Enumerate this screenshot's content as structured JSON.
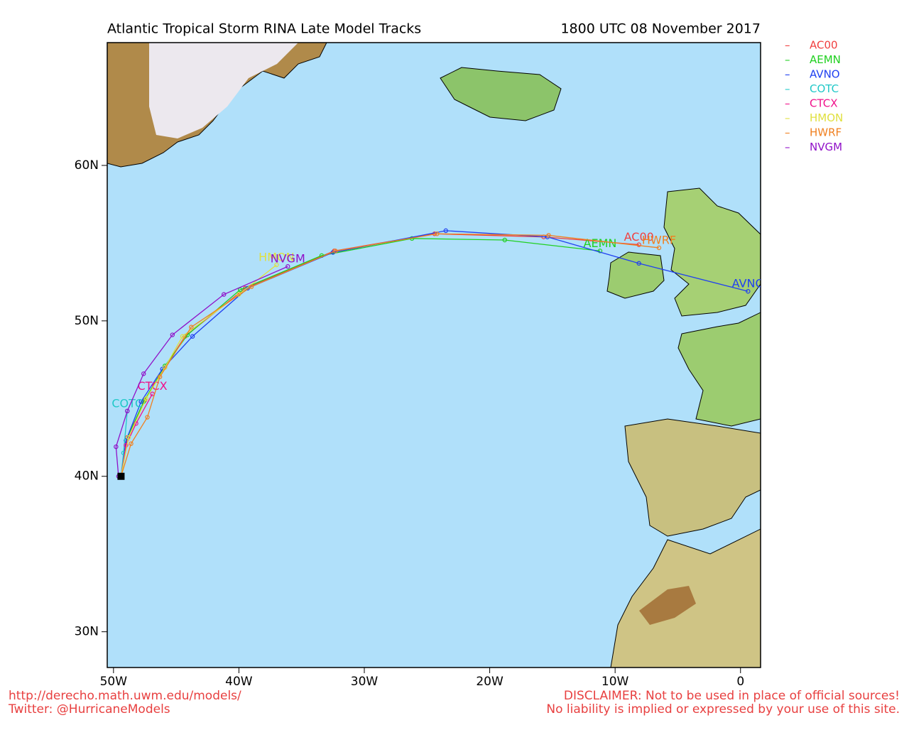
{
  "chart_data": {
    "type": "line",
    "title": "Atlantic Tropical Storm RINA Late Model Tracks",
    "subtitle": "1800 UTC 08 November 2017",
    "xlim": [
      -50.5,
      1.6
    ],
    "ylim": [
      27.7,
      67.9
    ],
    "xticks": [
      {
        "value": -50,
        "label": "50W"
      },
      {
        "value": -40,
        "label": "40W"
      },
      {
        "value": -30,
        "label": "30W"
      },
      {
        "value": -20,
        "label": "20W"
      },
      {
        "value": -10,
        "label": "10W"
      },
      0
    ],
    "yticks": [
      {
        "value": 30,
        "label": "30N"
      },
      {
        "value": 40,
        "label": "40N"
      },
      {
        "value": 50,
        "label": "50N"
      },
      {
        "value": 60,
        "label": "60N"
      }
    ],
    "legend": "outside-right",
    "series": [
      {
        "name": "AC00",
        "color": "#f04040",
        "x": [
          -49.4,
          -48.9,
          -47.5,
          -45.9,
          -44.3,
          -39.5,
          -32.4,
          -24.4,
          -15.7,
          -8.1
        ],
        "values": [
          40.0,
          42.5,
          44.9,
          47.0,
          49.0,
          52.1,
          54.5,
          55.6,
          55.4,
          54.9
        ]
      },
      {
        "name": "AEMN",
        "color": "#20d020",
        "x": [
          -49.4,
          -49.0,
          -47.6,
          -45.9,
          -44.1,
          -39.9,
          -33.4,
          -26.2,
          -18.8,
          -11.2
        ],
        "values": [
          40.0,
          42.3,
          44.8,
          47.1,
          49.1,
          52.0,
          54.2,
          55.3,
          55.2,
          54.5
        ]
      },
      {
        "name": "AVNO",
        "color": "#2040f0",
        "x": [
          -49.4,
          -49.0,
          -47.8,
          -46.1,
          -43.7,
          -39.3,
          -32.5,
          -23.5,
          -15.4,
          -8.1,
          0.6
        ],
        "values": [
          40.0,
          42.3,
          44.8,
          46.9,
          49.0,
          52.1,
          54.4,
          55.8,
          55.4,
          53.7,
          51.9
        ]
      },
      {
        "name": "COTC",
        "color": "#20c8c8",
        "x": [
          -49.4,
          -49.2,
          -48.9
        ],
        "values": [
          40.0,
          41.5,
          44.2
        ]
      },
      {
        "name": "CTCX",
        "color": "#f0108a",
        "x": [
          -49.4,
          -49.0,
          -48.2,
          -46.9
        ],
        "values": [
          40.0,
          42.0,
          43.4,
          45.3
        ]
      },
      {
        "name": "HMON",
        "color": "#e0e040",
        "x": [
          -49.4,
          -48.8,
          -47.4,
          -45.9,
          -44.5,
          -40.0,
          -37.0
        ],
        "values": [
          40.0,
          42.5,
          45.0,
          47.0,
          49.0,
          51.7,
          53.6
        ]
      },
      {
        "name": "HWRF",
        "color": "#f08020",
        "x": [
          -49.4,
          -48.6,
          -47.3,
          -46.3,
          -43.8,
          -39.0,
          -32.3,
          -24.2,
          -15.3,
          -6.5
        ],
        "values": [
          40.0,
          42.1,
          43.8,
          46.4,
          49.6,
          52.2,
          54.5,
          55.6,
          55.5,
          54.7
        ]
      },
      {
        "name": "NVGM",
        "color": "#9010c8",
        "x": [
          -49.6,
          -49.8,
          -48.9,
          -47.6,
          -45.3,
          -41.2,
          -36.1
        ],
        "values": [
          40.0,
          41.9,
          44.2,
          46.6,
          49.1,
          51.7,
          53.5
        ]
      }
    ]
  },
  "footer": {
    "url": "http://derecho.math.uwm.edu/models/",
    "twitter": "Twitter: @HurricaneModels",
    "disclaimer": [
      "DISCLAIMER: Not to be used in place of official sources!",
      "No liability is implied or expressed by your use of this site."
    ]
  }
}
